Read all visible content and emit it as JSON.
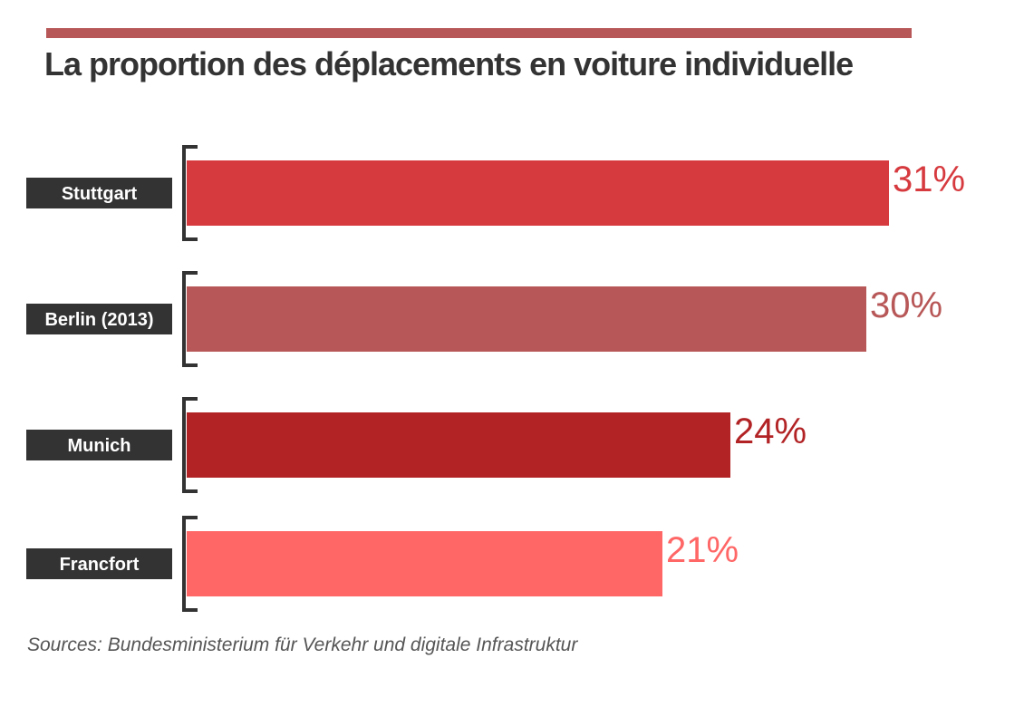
{
  "colors": {
    "accent": "#B85757",
    "title": "#333333",
    "label_bg": "#333333",
    "label_text": "#ffffff",
    "bracket": "#333333",
    "source": "#555555"
  },
  "chart_data": {
    "type": "bar",
    "orientation": "horizontal",
    "title": "La proportion des déplacements en voiture individuelle",
    "categories": [
      "Stuttgart",
      "Berlin (2013)",
      "Munich",
      "Francfort"
    ],
    "values": [
      31,
      30,
      24,
      21
    ],
    "value_labels": [
      "31%",
      "30%",
      "24%",
      "21%"
    ],
    "unit": "%",
    "bar_colors": [
      "#D63A3F",
      "#B85757",
      "#B22325",
      "#FF6666"
    ],
    "xlim": [
      0,
      31
    ],
    "grid": false,
    "legend": "none"
  },
  "source": "Sources: Bundesministerium für Verkehr und digitale Infrastruktur"
}
